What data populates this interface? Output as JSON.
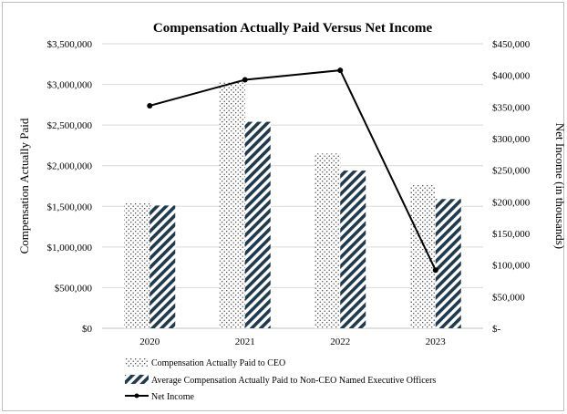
{
  "chart_data": {
    "type": "bar",
    "title": "Compensation Actually Paid Versus Net Income",
    "categories": [
      "2020",
      "2021",
      "2022",
      "2023"
    ],
    "series": [
      {
        "name": "Compensation Actually Paid to CEO",
        "kind": "bar",
        "axis": "left",
        "pattern": "dots",
        "values": [
          1540000,
          3030000,
          2150000,
          1770000
        ]
      },
      {
        "name": "Average Compensation Actually Paid to Non-CEO Named Executive Officers",
        "kind": "bar",
        "axis": "left",
        "pattern": "diagonal-hatch",
        "values": [
          1510000,
          2540000,
          1940000,
          1590000
        ]
      },
      {
        "name": "Net Income",
        "kind": "line",
        "axis": "right",
        "values": [
          352000,
          393000,
          408000,
          92000
        ]
      }
    ],
    "ylabel": "Compensation Actually Paid",
    "y2label": "Net Income (in thousands)",
    "ylim": [
      0,
      3500000
    ],
    "y2lim": [
      0,
      450000
    ],
    "yticks": [
      "$0",
      "$500,000",
      "$1,000,000",
      "$1,500,000",
      "$2,000,000",
      "$2,500,000",
      "$3,000,000",
      "$3,500,000"
    ],
    "y2ticks": [
      "$-",
      "$50,000",
      "$100,000",
      "$150,000",
      "$200,000",
      "$250,000",
      "$300,000",
      "$350,000",
      "$400,000",
      "$450,000"
    ],
    "grid": true,
    "legend_position": "bottom",
    "colors": {
      "hatch": "#1f3a4d",
      "dots": "#3a3a3a",
      "line": "#000000",
      "grid": "#d9d9d9"
    }
  }
}
